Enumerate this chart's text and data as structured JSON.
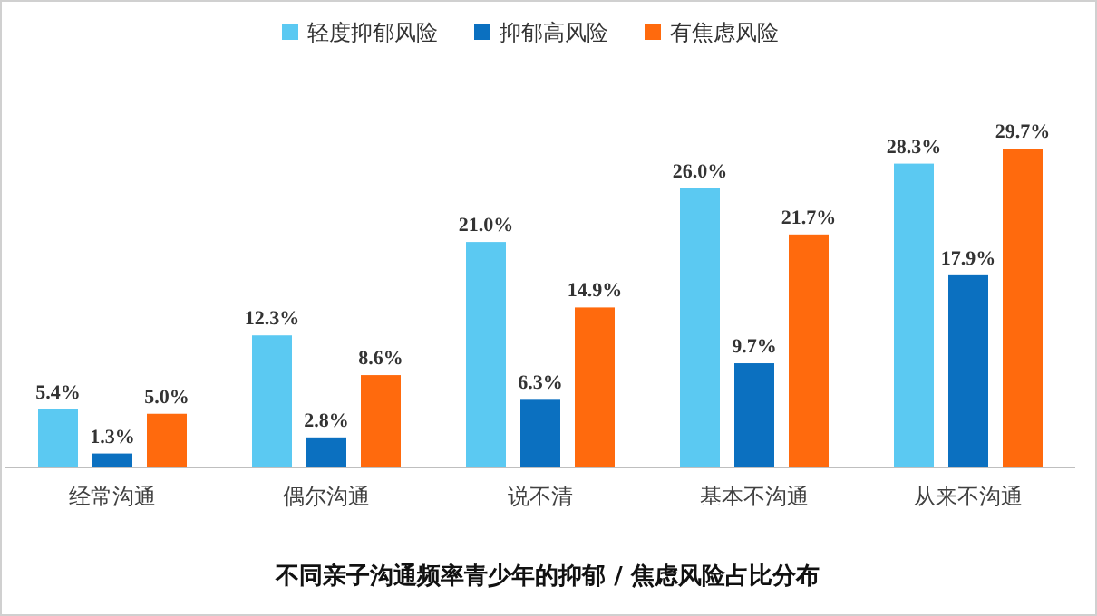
{
  "chart_data": {
    "type": "bar",
    "title": "不同亲子沟通频率青少年的抑郁 / 焦虑风险占比分布",
    "categories": [
      "经常沟通",
      "偶尔沟通",
      "说不清",
      "基本不沟通",
      "从来不沟通"
    ],
    "series": [
      {
        "name": "轻度抑郁风险",
        "color": "#5bc9f2",
        "values": [
          5.4,
          12.3,
          21.0,
          26.0,
          28.3
        ],
        "value_labels": [
          "5.4%",
          "12.3%",
          "21.0%",
          "26.0%",
          "28.3%"
        ]
      },
      {
        "name": "抑郁高风险",
        "color": "#0b70c0",
        "values": [
          1.3,
          2.8,
          6.3,
          9.7,
          17.9
        ],
        "value_labels": [
          "1.3%",
          "2.8%",
          "6.3%",
          "9.7%",
          "17.9%"
        ]
      },
      {
        "name": "有焦虑风险",
        "color": "#ff6a0d",
        "values": [
          5.0,
          8.6,
          14.9,
          21.7,
          29.7
        ],
        "value_labels": [
          "5.0%",
          "8.6%",
          "14.9%",
          "21.7%",
          "29.7%"
        ]
      }
    ],
    "legend": "top"
  }
}
